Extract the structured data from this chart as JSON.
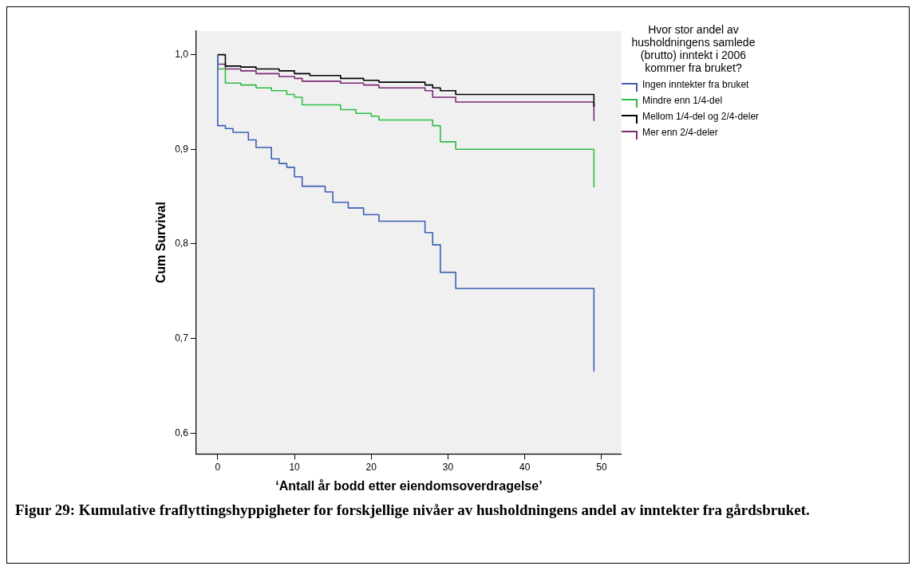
{
  "chart_data": {
    "type": "step",
    "xlabel": "‘Antall år bodd etter eiendomsoverdragelse’",
    "ylabel": "Cum Survival",
    "legend_title": "Hvor stor andel av husholdningens samlede (brutto) inntekt i 2006 kommer fra bruket?",
    "legend": "right",
    "xlim": [
      -2.8,
      52.6
    ],
    "ylim": [
      0.578,
      1.025
    ],
    "xticks": [
      0,
      10,
      20,
      30,
      40,
      50
    ],
    "yticks": [
      {
        "value": 0.6,
        "label": "0,6"
      },
      {
        "value": 0.7,
        "label": "0,7"
      },
      {
        "value": 0.8,
        "label": "0,8"
      },
      {
        "value": 0.9,
        "label": "0,9"
      },
      {
        "value": 1.0,
        "label": "1,0"
      }
    ],
    "series": [
      {
        "name": "Ingen inntekter fra bruket",
        "color": "#3f5fb5",
        "x": [
          0,
          0,
          1,
          2,
          4,
          5,
          7,
          8,
          9,
          10,
          11,
          14,
          15,
          17,
          19,
          21,
          27,
          28,
          29,
          31,
          49
        ],
        "values": [
          1,
          0.925,
          0.922,
          0.918,
          0.91,
          0.902,
          0.89,
          0.885,
          0.881,
          0.871,
          0.861,
          0.855,
          0.844,
          0.838,
          0.831,
          0.824,
          0.812,
          0.799,
          0.77,
          0.753,
          0.665
        ]
      },
      {
        "name": "Mindre enn 1/4-del",
        "color": "#2ebd44",
        "x": [
          0,
          0,
          1,
          3,
          5,
          7,
          9,
          10,
          11,
          16,
          18,
          20,
          21,
          28,
          29,
          31,
          49
        ],
        "values": [
          1,
          0.985,
          0.97,
          0.968,
          0.965,
          0.962,
          0.958,
          0.955,
          0.947,
          0.942,
          0.938,
          0.935,
          0.931,
          0.925,
          0.908,
          0.9,
          0.86
        ]
      },
      {
        "name": "Mellom 1/4-del og 2/4-deler",
        "color": "#000000",
        "x": [
          0,
          1,
          1,
          3,
          5,
          8,
          10,
          12,
          16,
          19,
          21,
          27,
          28,
          29,
          31,
          49
        ],
        "values": [
          1,
          1,
          0.988,
          0.987,
          0.985,
          0.983,
          0.98,
          0.978,
          0.975,
          0.973,
          0.971,
          0.968,
          0.965,
          0.962,
          0.958,
          0.945
        ]
      },
      {
        "name": "Mer enn 2/4-deler",
        "color": "#7b2a78",
        "x": [
          0,
          0,
          1,
          3,
          5,
          8,
          10,
          11,
          16,
          19,
          21,
          27,
          28,
          31,
          49
        ],
        "values": [
          1,
          0.99,
          0.985,
          0.983,
          0.98,
          0.977,
          0.975,
          0.972,
          0.97,
          0.968,
          0.965,
          0.962,
          0.955,
          0.95,
          0.93
        ]
      }
    ],
    "annotations": [
      "Figur 29: Kumulative fraflyttingshyppigheter for forskjellige nivåer av husholdningens andel av inntekter fra gårdsbruket."
    ]
  }
}
